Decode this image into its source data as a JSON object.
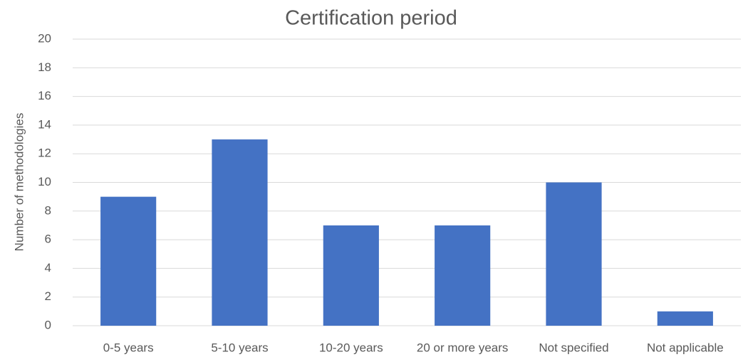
{
  "chart_data": {
    "type": "bar",
    "title": "Certification period",
    "y_label": "Number of methodologies",
    "categories": [
      "0-5 years",
      "5-10 years",
      "10-20 years",
      "20 or more years",
      "Not specified",
      "Not applicable"
    ],
    "values": [
      9,
      13,
      7,
      7,
      10,
      1
    ],
    "color": "#4472c4",
    "ylim": [
      0,
      20
    ],
    "yticks": [
      0,
      2,
      4,
      6,
      8,
      10,
      12,
      14,
      16,
      18,
      20
    ],
    "grid": true
  }
}
